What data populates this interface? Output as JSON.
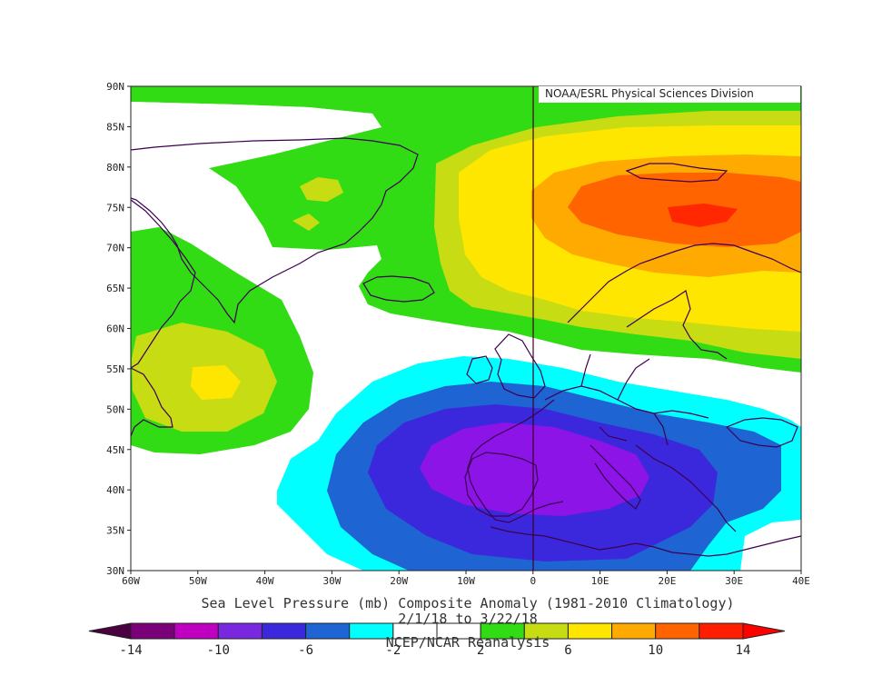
{
  "credit": "NOAA/ESRL Physical Sciences Division",
  "title": "Sea Level Pressure (mb) Composite Anomaly (1981-2010 Climatology)",
  "date_range": "2/1/18  to 3/22/18",
  "source": "NCEP/NCAR Reanalysis",
  "axes": {
    "lat_labels": [
      "90N",
      "85N",
      "80N",
      "75N",
      "70N",
      "65N",
      "60N",
      "55N",
      "50N",
      "45N",
      "40N",
      "35N",
      "30N"
    ],
    "lon_labels": [
      "60W",
      "50W",
      "40W",
      "30W",
      "20W",
      "10W",
      "0",
      "10E",
      "20E",
      "30E",
      "40E"
    ]
  },
  "colorbar": {
    "labels": [
      "-14",
      "-10",
      "-6",
      "-2",
      "2",
      "6",
      "10",
      "14"
    ],
    "colors": [
      "#4b0040",
      "#7a007a",
      "#c000c0",
      "#7a28e0",
      "#3c28dc",
      "#1e64d2",
      "#00ffff",
      "#ffffff",
      "#ffffff",
      "#32dc14",
      "#c8dc14",
      "#ffe600",
      "#ffaa00",
      "#ff6400",
      "#ff1e00",
      "#ff0000"
    ]
  },
  "map_colors": {
    "very_low": "#8c14e6",
    "low2": "#3c28dc",
    "low1": "#1e64d2",
    "low0": "#00ffff",
    "high0": "#32dc14",
    "high1": "#c8dc14",
    "high2": "#ffe600",
    "high3": "#ffaa00",
    "high4": "#ff6400",
    "high5": "#ff2800",
    "coast": "#3c0050"
  }
}
